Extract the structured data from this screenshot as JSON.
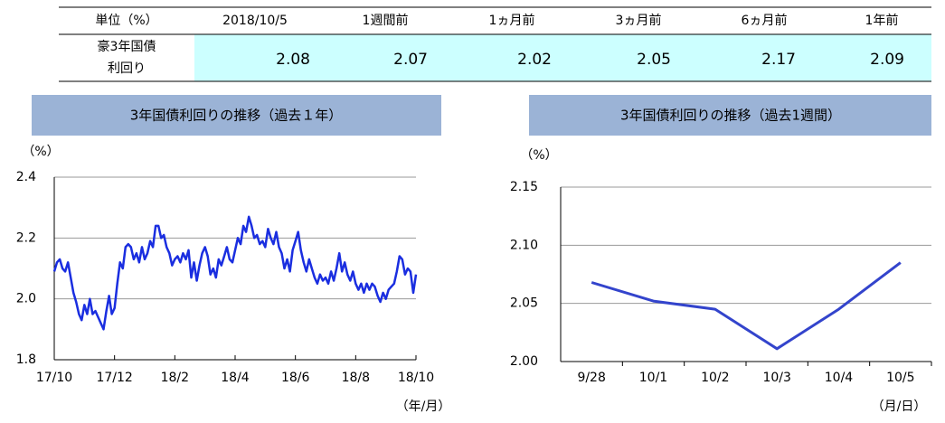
{
  "table": {
    "header": [
      "単位（%）",
      "2018/10/5",
      "1週間前",
      "1ヵ月前",
      "3ヵ月前",
      "6ヵ月前",
      "1年前"
    ],
    "row_label": [
      "豪3年国債",
      "利回り"
    ],
    "row": [
      2.08,
      2.07,
      2.02,
      2.05,
      2.17,
      2.09
    ]
  },
  "chart_data": [
    {
      "type": "line",
      "title": "3年国債利回りの推移（過去１年）",
      "y_unit": "（%）",
      "x_unit": "（年/月）",
      "color": "#1a2ee0",
      "grid": true,
      "ylim": [
        1.8,
        2.4
      ],
      "yticks": [
        1.8,
        {
          "value": 2,
          "label": "2.0"
        },
        2.2,
        2.4
      ],
      "xticks": [
        "17/10",
        "17/12",
        "18/2",
        "18/4",
        "18/6",
        "18/8",
        "18/10"
      ],
      "values": [
        2.09,
        2.12,
        2.13,
        2.1,
        2.09,
        2.12,
        2.07,
        2.02,
        1.99,
        1.95,
        1.93,
        1.98,
        1.95,
        2.0,
        1.95,
        1.96,
        1.94,
        1.92,
        1.9,
        1.96,
        2.01,
        1.95,
        1.97,
        2.05,
        2.12,
        2.1,
        2.17,
        2.18,
        2.17,
        2.13,
        2.15,
        2.12,
        2.17,
        2.13,
        2.15,
        2.19,
        2.17,
        2.24,
        2.24,
        2.2,
        2.21,
        2.17,
        2.15,
        2.11,
        2.13,
        2.14,
        2.12,
        2.15,
        2.13,
        2.16,
        2.07,
        2.12,
        2.06,
        2.11,
        2.15,
        2.17,
        2.14,
        2.08,
        2.1,
        2.07,
        2.13,
        2.11,
        2.14,
        2.17,
        2.13,
        2.12,
        2.16,
        2.2,
        2.18,
        2.24,
        2.22,
        2.27,
        2.24,
        2.2,
        2.21,
        2.18,
        2.19,
        2.17,
        2.23,
        2.2,
        2.18,
        2.22,
        2.17,
        2.15,
        2.1,
        2.13,
        2.09,
        2.16,
        2.19,
        2.22,
        2.16,
        2.12,
        2.09,
        2.13,
        2.1,
        2.07,
        2.05,
        2.08,
        2.06,
        2.07,
        2.05,
        2.09,
        2.06,
        2.1,
        2.15,
        2.09,
        2.12,
        2.08,
        2.06,
        2.09,
        2.05,
        2.03,
        2.05,
        2.02,
        2.05,
        2.03,
        2.05,
        2.04,
        2.01,
        1.99,
        2.02,
        2.0,
        2.03,
        2.04,
        2.05,
        2.09,
        2.14,
        2.13,
        2.08,
        2.1,
        2.09,
        2.02,
        2.08
      ]
    },
    {
      "type": "line",
      "title": "3年国債利回りの推移（過去1週間）",
      "y_unit": "（%）",
      "x_unit": "（月/日）",
      "color": "#3344cc",
      "grid": true,
      "ylim": [
        2.0,
        2.15
      ],
      "yticks": [
        {
          "value": 2.0,
          "label": "2.00"
        },
        2.05,
        {
          "value": 2.1,
          "label": "2.10"
        },
        2.15
      ],
      "categories": [
        "9/28",
        "10/1",
        "10/2",
        "10/3",
        "10/4",
        "10/5"
      ],
      "values": [
        2.068,
        2.052,
        2.045,
        2.011,
        2.045,
        2.085
      ]
    }
  ]
}
